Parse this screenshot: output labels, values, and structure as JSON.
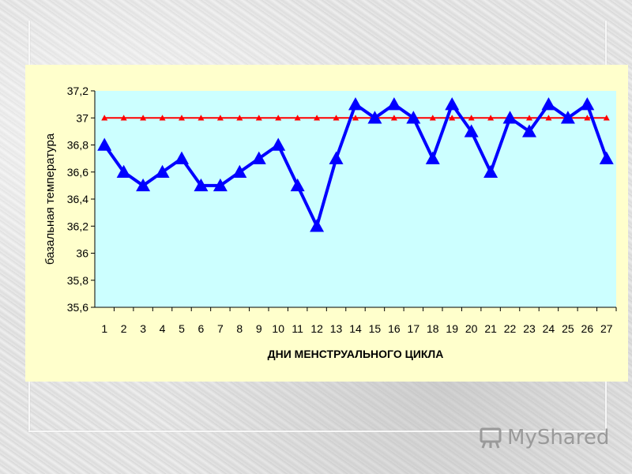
{
  "chart_data": {
    "type": "line",
    "x": [
      1,
      2,
      3,
      4,
      5,
      6,
      7,
      8,
      9,
      10,
      11,
      12,
      13,
      14,
      15,
      16,
      17,
      18,
      19,
      20,
      21,
      22,
      23,
      24,
      25,
      26,
      27
    ],
    "xlabel": "ДНИ МЕНСТРУАЛЬНОГО ЦИКЛА",
    "ylabel": "базальная температура",
    "ylim": [
      35.6,
      37.2
    ],
    "yticks": [
      "35,6",
      "35,8",
      "36",
      "36,2",
      "36,4",
      "36,6",
      "36,8",
      "37",
      "37,2"
    ],
    "grid": false,
    "legend": "none",
    "series": [
      {
        "color": "#0000ff",
        "marker": "triangle",
        "values": [
          36.8,
          36.6,
          36.5,
          36.6,
          36.7,
          36.5,
          36.5,
          36.6,
          36.7,
          36.8,
          36.5,
          36.2,
          36.7,
          37.1,
          37.0,
          37.1,
          37.0,
          36.7,
          37.1,
          36.9,
          36.6,
          37.0,
          36.9,
          37.1,
          37.0,
          37.1,
          36.7
        ]
      },
      {
        "color": "#ff0000",
        "marker": "triangle",
        "values": [
          37,
          37,
          37,
          37,
          37,
          37,
          37,
          37,
          37,
          37,
          37,
          37,
          37,
          37,
          37,
          37,
          37,
          37,
          37,
          37,
          37,
          37,
          37,
          37,
          37,
          37,
          37
        ]
      }
    ]
  },
  "colors": {
    "plot_bg": "#ccffff",
    "panel_bg": "#ffffcc"
  },
  "watermark": {
    "text": "MyShared",
    "icon": "presentation-board-icon"
  }
}
